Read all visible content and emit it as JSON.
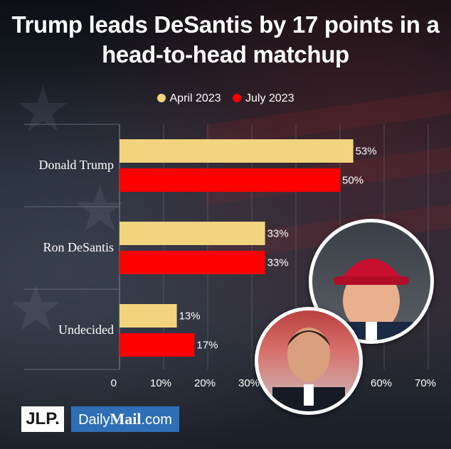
{
  "header": {
    "title_line1": "Trump leads DeSantis by 17 points in a",
    "title_line2": "head-to-head matchup"
  },
  "colors": {
    "april": "#f2d47e",
    "july": "#ff0000",
    "grid": "#6b7280"
  },
  "chart_data": {
    "type": "bar",
    "orientation": "horizontal",
    "categories": [
      "Donald Trump",
      "Ron DeSantis",
      "Undecided"
    ],
    "series": [
      {
        "name": "April 2023",
        "values": [
          53,
          33,
          13
        ],
        "labels": [
          "53%",
          "33%",
          "13%"
        ]
      },
      {
        "name": "July 2023",
        "values": [
          50,
          33,
          17
        ],
        "labels": [
          "50%",
          "33%",
          "17%"
        ]
      }
    ],
    "xlim": [
      0,
      70
    ],
    "ticks": [
      0,
      10,
      20,
      30,
      40,
      50,
      60,
      70
    ],
    "tick_labels": [
      "0",
      "10%",
      "20%",
      "30%",
      "40%",
      "50%",
      "60%",
      "70%"
    ],
    "legend_position": "top-center",
    "grid": true
  },
  "branding": {
    "jlp": "JLP.",
    "dailymail_prefix": "Daily",
    "dailymail_bold": "Mail",
    "dailymail_suffix": ".com"
  },
  "images": {
    "trump_photo": "Trump photo",
    "desantis_photo": "DeSantis photo"
  }
}
